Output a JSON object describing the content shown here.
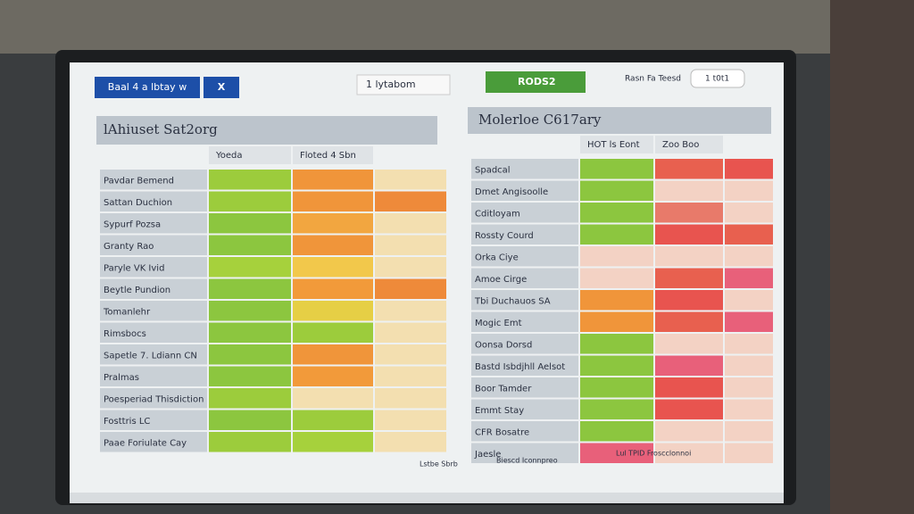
{
  "top_bar": {
    "primary_button": "Baal 4 a lbtay w",
    "close_button": "X",
    "dropdown": "1 lytabom",
    "action_button": "RODS2",
    "status_text": "Rasn Fa Teesd",
    "counter": "1 t0t1"
  },
  "left_panel": {
    "title": "lAhiuset Sat2org",
    "columns": [
      "Yoeda",
      "Floted 4  Sbn"
    ],
    "rows": [
      {
        "label": "Pavdar Bemend",
        "colors": [
          "#9ccc3c",
          "#f0953a",
          null
        ]
      },
      {
        "label": "Sattan Duchion",
        "colors": [
          "#9ccc3c",
          "#f0953a",
          "#ee8a3a"
        ]
      },
      {
        "label": "Sypurf Pozsa",
        "colors": [
          "#8cc63f",
          "#f2a640",
          null
        ]
      },
      {
        "label": "Granty Rao",
        "colors": [
          "#8cc63f",
          "#f0953a",
          null
        ]
      },
      {
        "label": "Paryle VK Ivid",
        "colors": [
          "#a6d13c",
          "#f2c84b",
          null
        ]
      },
      {
        "label": "Beytle Pundion",
        "colors": [
          "#8cc63f",
          "#f29a3a",
          "#ee8a3a"
        ]
      },
      {
        "label": "Tomanlehr",
        "colors": [
          "#8cc63f",
          "#e6cf45",
          null
        ]
      },
      {
        "label": "Rimsbocs",
        "colors": [
          "#8cc63f",
          "#9ccc3c",
          null
        ]
      },
      {
        "label": "Sapetle 7. Ldiann CN",
        "colors": [
          "#8cc63f",
          "#f0953a",
          null
        ]
      },
      {
        "label": "Pralmas",
        "colors": [
          "#8cc63f",
          "#f29a3a",
          null
        ]
      },
      {
        "label": "Poesperiad Thisdiction",
        "colors": [
          "#9ccc3c",
          null,
          null
        ]
      },
      {
        "label": "Fosttris LC",
        "colors": [
          "#8cc63f",
          "#9ccc3c",
          null
        ]
      },
      {
        "label": "Paae Foriulate Cay",
        "colors": [
          "#9ccc3c",
          "#a6d13c",
          null
        ]
      }
    ]
  },
  "right_panel": {
    "title": "Molerloe C617ary",
    "columns": [
      "HOT ls Eont",
      "Zoo Boo"
    ],
    "rows": [
      {
        "label": "Spadcal",
        "colors": [
          "#8cc63f",
          "#e8604f",
          "#e8544f"
        ]
      },
      {
        "label": "Dmet Angisoolle",
        "colors": [
          "#8cc63f",
          null,
          null
        ]
      },
      {
        "label": "Cditloyam",
        "colors": [
          "#8cc63f",
          "#e87a6a",
          null
        ]
      },
      {
        "label": "Rossty Courd",
        "colors": [
          "#8cc63f",
          "#e8544f",
          "#e8604f"
        ]
      },
      {
        "label": "Orka Ciye",
        "colors": [
          null,
          null,
          null
        ]
      },
      {
        "label": "Amoe Cirge",
        "colors": [
          null,
          "#e8604f",
          "#e8607a"
        ]
      },
      {
        "label": "Tbi Duchauos SA",
        "colors": [
          "#f0953a",
          "#e8544f",
          null
        ]
      },
      {
        "label": "Mogic Emt",
        "colors": [
          "#f0953a",
          "#e8604f",
          "#e8607a"
        ]
      },
      {
        "label": "Oonsa Dorsd",
        "colors": [
          "#8cc63f",
          null,
          null
        ]
      },
      {
        "label": "Bastd Isbdjhll Aelsot",
        "colors": [
          "#8cc63f",
          "#e8607a",
          null
        ]
      },
      {
        "label": "Boor Tamder",
        "colors": [
          "#8cc63f",
          "#e8544f",
          null
        ]
      },
      {
        "label": "Emmt Stay",
        "colors": [
          "#8cc63f",
          "#e8544f",
          null
        ]
      },
      {
        "label": "CFR Bosatre",
        "colors": [
          "#8cc63f",
          null,
          null
        ]
      },
      {
        "label": "Jaesle",
        "colors": [
          "#e8607a",
          null,
          null
        ]
      }
    ]
  },
  "footer": [
    "Lstbe Sbrb",
    "Biescd Iconnpreo",
    "Lul TPID Froscclonnoi"
  ]
}
